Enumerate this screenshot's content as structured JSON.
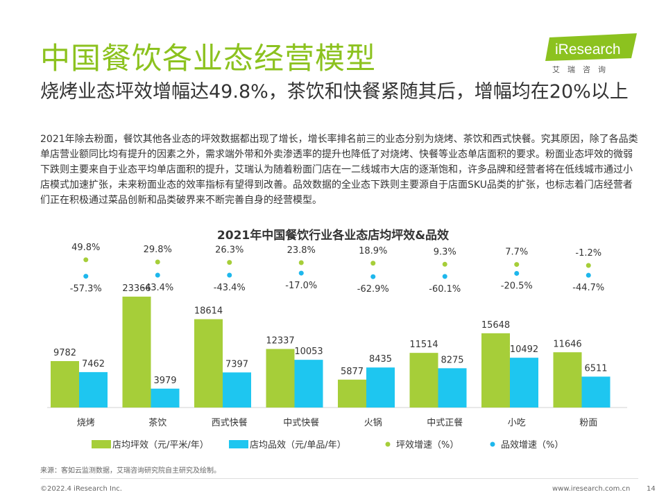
{
  "page": {
    "title": "中国餐饮各业态经营模型",
    "subtitle": "烧烤业态坪效增幅达49.8%，茶饮和快餐紧随其后，增幅均在20%以上",
    "body": "2021年除去粉面，餐饮其他各业态的坪效数据都出现了增长，增长率排名前三的业态分别为烧烤、茶饮和西式快餐。究其原因，除了各品类单店营业额同比均有提升的因素之外，需求端外带和外卖渗透率的提升也降低了对烧烤、快餐等业态单店面积的要求。粉面业态坪效的微弱下跌则主要来自于业态平均单店面积的提升，艾瑞认为随着粉面门店在一二线城市大店的逐渐饱和，许多品牌和经营者将在低线城市通过小店模式加速扩张，未来粉面业态的效率指标有望得到改善。品效数据的全业态下跌则主要源自于店面SKU品类的扩张，也标志着门店经营者们正在积极通过菜品创新和品类破界来不断完善自身的经营模型。",
    "source": "来源：客如云监测数据，艾瑞咨询研究院自主研究及绘制。",
    "footer_left": "©2022.4 iResearch Inc.",
    "footer_right": "www.iresearch.com.cn",
    "page_number": "14"
  },
  "logo": {
    "text": "iResearch",
    "subtext": "艾瑞咨询"
  },
  "colors": {
    "title_green": "#8cc21f",
    "bar_green": "#a6ce39",
    "bar_blue": "#1ec6f0",
    "dot_green": "#a6ce39",
    "dot_blue": "#1eb7ec"
  },
  "chart_data": {
    "type": "bar",
    "title": "2021年中国餐饮行业各业态店均坪效&品效",
    "categories": [
      "烧烤",
      "茶饮",
      "西式快餐",
      "中式快餐",
      "火锅",
      "中式正餐",
      "小吃",
      "粉面"
    ],
    "series": [
      {
        "name": "店均坪效（元/平米/年）",
        "kind": "bar",
        "values": [
          9782,
          23366,
          18614,
          12337,
          5877,
          11514,
          15648,
          11646
        ]
      },
      {
        "name": "店均品效（元/单品/年）",
        "kind": "bar",
        "values": [
          7462,
          3979,
          7397,
          10053,
          8435,
          8275,
          10492,
          6511
        ]
      },
      {
        "name": "坪效增速（%）",
        "kind": "scatter",
        "values": [
          49.8,
          29.8,
          26.3,
          23.8,
          18.9,
          9.3,
          7.7,
          -1.2
        ],
        "labels": [
          "49.8%",
          "29.8%",
          "26.3%",
          "23.8%",
          "18.9%",
          "9.3%",
          "7.7%",
          "-1.2%"
        ]
      },
      {
        "name": "品效增速（%）",
        "kind": "scatter",
        "values": [
          -57.3,
          -43.4,
          -43.4,
          -17.0,
          -62.9,
          -60.1,
          -20.5,
          -44.7
        ],
        "labels": [
          "-57.3%",
          "-43.4%",
          "-43.4%",
          "-17.0%",
          "-62.9%",
          "-60.1%",
          "-20.5%",
          "-44.7%"
        ]
      }
    ],
    "xlabel": "",
    "ylabel": "",
    "legend_position": "bottom"
  }
}
